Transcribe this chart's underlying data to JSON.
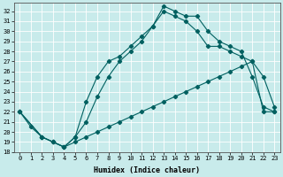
{
  "xlabel": "Humidex (Indice chaleur)",
  "bg_color": "#c8ebeb",
  "grid_color": "#ffffff",
  "line_color": "#006060",
  "xlim": [
    -0.5,
    23.5
  ],
  "ylim": [
    18,
    32.8
  ],
  "yticks": [
    18,
    19,
    20,
    21,
    22,
    23,
    24,
    25,
    26,
    27,
    28,
    29,
    30,
    31,
    32
  ],
  "xticks": [
    0,
    1,
    2,
    3,
    4,
    5,
    6,
    7,
    8,
    9,
    10,
    11,
    12,
    13,
    14,
    15,
    16,
    17,
    18,
    19,
    20,
    21,
    22,
    23
  ],
  "curve1_x": [
    0,
    1,
    2,
    3,
    4,
    5,
    6,
    7,
    8,
    9,
    10,
    11,
    12,
    13,
    14,
    15,
    16,
    17,
    18,
    19,
    20,
    21,
    22,
    23
  ],
  "curve1_y": [
    22,
    20.5,
    19.5,
    19,
    18.5,
    19.0,
    19.5,
    20.0,
    20.5,
    21.0,
    21.5,
    22.0,
    22.5,
    23.0,
    23.5,
    24.0,
    24.5,
    25.0,
    25.5,
    26.0,
    26.5,
    27.0,
    22.0,
    22.0
  ],
  "curve2_x": [
    0,
    2,
    3,
    4,
    5,
    6,
    7,
    8,
    9,
    10,
    11,
    12,
    13,
    14,
    15,
    16,
    17,
    18,
    19,
    20,
    21,
    22,
    23
  ],
  "curve2_y": [
    22,
    19.5,
    19.0,
    18.5,
    19.5,
    23.0,
    25.5,
    27.0,
    27.5,
    28.5,
    29.5,
    30.5,
    32.5,
    32.0,
    31.5,
    31.5,
    30.0,
    29.0,
    28.5,
    28.0,
    25.5,
    22.5,
    22.0
  ],
  "curve3_x": [
    0,
    2,
    3,
    4,
    5,
    6,
    7,
    8,
    9,
    10,
    11,
    12,
    13,
    14,
    15,
    16,
    17,
    18,
    19,
    20,
    21,
    22,
    23
  ],
  "curve3_y": [
    22,
    19.5,
    19.0,
    18.5,
    19.5,
    21.0,
    23.5,
    25.5,
    27.0,
    28.0,
    29.0,
    30.5,
    32.0,
    31.5,
    31.0,
    30.0,
    28.5,
    28.5,
    28.0,
    27.5,
    27.0,
    25.5,
    22.5
  ]
}
